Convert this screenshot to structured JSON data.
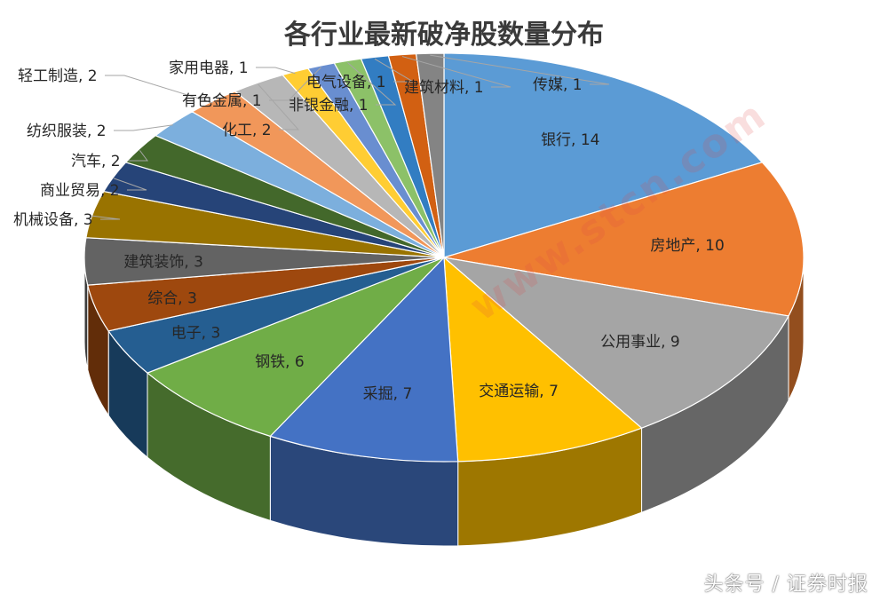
{
  "chart_data": {
    "type": "pie",
    "title": "各行业最新破净股数量分布",
    "slices": [
      {
        "label": "银行",
        "value": 14,
        "color": "#5b9bd5",
        "data_label": "银行, 14"
      },
      {
        "label": "房地产",
        "value": 10,
        "color": "#ed7d31",
        "data_label": "房地产, 10"
      },
      {
        "label": "公用事业",
        "value": 9,
        "color": "#a5a5a5",
        "data_label": "公用事业, 9"
      },
      {
        "label": "交通运输",
        "value": 7,
        "color": "#ffc000",
        "data_label": "交通运输, 7"
      },
      {
        "label": "采掘",
        "value": 7,
        "color": "#4472c4",
        "data_label": "采掘, 7"
      },
      {
        "label": "钢铁",
        "value": 6,
        "color": "#70ad47",
        "data_label": "钢铁, 6"
      },
      {
        "label": "电子",
        "value": 3,
        "color": "#255e91",
        "data_label": "电子, 3"
      },
      {
        "label": "综合",
        "value": 3,
        "color": "#9e480e",
        "data_label": "综合, 3"
      },
      {
        "label": "建筑装饰",
        "value": 3,
        "color": "#636363",
        "data_label": "建筑装饰, 3"
      },
      {
        "label": "机械设备",
        "value": 3,
        "color": "#997300",
        "data_label": "机械设备, 3"
      },
      {
        "label": "商业贸易",
        "value": 2,
        "color": "#264478",
        "data_label": "商业贸易, 2"
      },
      {
        "label": "汽车",
        "value": 2,
        "color": "#43682b",
        "data_label": "汽车, 2"
      },
      {
        "label": "纺织服装",
        "value": 2,
        "color": "#7cafdd",
        "data_label": "纺织服装, 2"
      },
      {
        "label": "轻工制造",
        "value": 2,
        "color": "#f1975a",
        "data_label": "轻工制造, 2"
      },
      {
        "label": "化工",
        "value": 2,
        "color": "#b7b7b7",
        "data_label": "化工, 2"
      },
      {
        "label": "家用电器",
        "value": 1,
        "color": "#ffcd33",
        "data_label": "家用电器, 1"
      },
      {
        "label": "有色金属",
        "value": 1,
        "color": "#698ed0",
        "data_label": "有色金属, 1"
      },
      {
        "label": "非银金融",
        "value": 1,
        "color": "#8cc168",
        "data_label": "非银金融, 1"
      },
      {
        "label": "电气设备",
        "value": 1,
        "color": "#327dc2",
        "data_label": "电气设备, 1"
      },
      {
        "label": "建筑材料",
        "value": 1,
        "color": "#d26012",
        "data_label": "建筑材料, 1"
      },
      {
        "label": "传媒",
        "value": 1,
        "color": "#848484",
        "data_label": "传媒, 1"
      }
    ],
    "legend": "none",
    "style": "3d-pie"
  },
  "watermark": {
    "source": "头条号 / 证券时报",
    "url": "www.stcn.com"
  }
}
